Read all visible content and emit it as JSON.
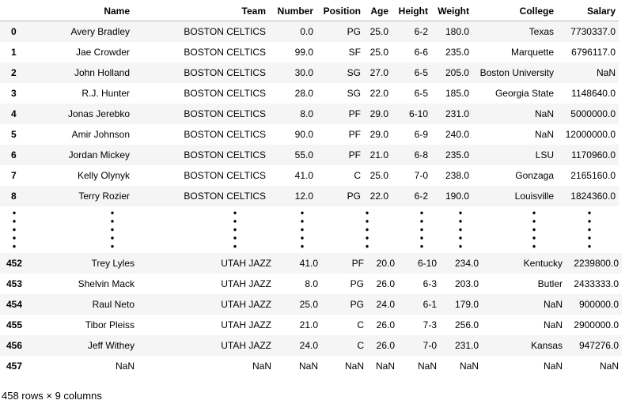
{
  "columns": [
    "Name",
    "Team",
    "Number",
    "Position",
    "Age",
    "Height",
    "Weight",
    "College",
    "Salary"
  ],
  "top_rows": [
    {
      "idx": "0",
      "cells": [
        "Avery Bradley",
        "BOSTON CELTICS",
        "0.0",
        "PG",
        "25.0",
        "6-2",
        "180.0",
        "Texas",
        "7730337.0"
      ]
    },
    {
      "idx": "1",
      "cells": [
        "Jae Crowder",
        "BOSTON CELTICS",
        "99.0",
        "SF",
        "25.0",
        "6-6",
        "235.0",
        "Marquette",
        "6796117.0"
      ]
    },
    {
      "idx": "2",
      "cells": [
        "John Holland",
        "BOSTON CELTICS",
        "30.0",
        "SG",
        "27.0",
        "6-5",
        "205.0",
        "Boston University",
        "NaN"
      ]
    },
    {
      "idx": "3",
      "cells": [
        "R.J. Hunter",
        "BOSTON CELTICS",
        "28.0",
        "SG",
        "22.0",
        "6-5",
        "185.0",
        "Georgia State",
        "1148640.0"
      ]
    },
    {
      "idx": "4",
      "cells": [
        "Jonas Jerebko",
        "BOSTON CELTICS",
        "8.0",
        "PF",
        "29.0",
        "6-10",
        "231.0",
        "NaN",
        "5000000.0"
      ]
    },
    {
      "idx": "5",
      "cells": [
        "Amir Johnson",
        "BOSTON CELTICS",
        "90.0",
        "PF",
        "29.0",
        "6-9",
        "240.0",
        "NaN",
        "12000000.0"
      ]
    },
    {
      "idx": "6",
      "cells": [
        "Jordan Mickey",
        "BOSTON CELTICS",
        "55.0",
        "PF",
        "21.0",
        "6-8",
        "235.0",
        "LSU",
        "1170960.0"
      ]
    },
    {
      "idx": "7",
      "cells": [
        "Kelly Olynyk",
        "BOSTON CELTICS",
        "41.0",
        "C",
        "25.0",
        "7-0",
        "238.0",
        "Gonzaga",
        "2165160.0"
      ]
    },
    {
      "idx": "8",
      "cells": [
        "Terry Rozier",
        "BOSTON CELTICS",
        "12.0",
        "PG",
        "22.0",
        "6-2",
        "190.0",
        "Louisville",
        "1824360.0"
      ]
    }
  ],
  "bottom_rows": [
    {
      "idx": "452",
      "cells": [
        "Trey Lyles",
        "UTAH JAZZ",
        "41.0",
        "PF",
        "20.0",
        "6-10",
        "234.0",
        "Kentucky",
        "2239800.0"
      ]
    },
    {
      "idx": "453",
      "cells": [
        "Shelvin Mack",
        "UTAH JAZZ",
        "8.0",
        "PG",
        "26.0",
        "6-3",
        "203.0",
        "Butler",
        "2433333.0"
      ]
    },
    {
      "idx": "454",
      "cells": [
        "Raul Neto",
        "UTAH JAZZ",
        "25.0",
        "PG",
        "24.0",
        "6-1",
        "179.0",
        "NaN",
        "900000.0"
      ]
    },
    {
      "idx": "455",
      "cells": [
        "Tibor Pleiss",
        "UTAH JAZZ",
        "21.0",
        "C",
        "26.0",
        "7-3",
        "256.0",
        "NaN",
        "2900000.0"
      ]
    },
    {
      "idx": "456",
      "cells": [
        "Jeff Withey",
        "UTAH JAZZ",
        "24.0",
        "C",
        "26.0",
        "7-0",
        "231.0",
        "Kansas",
        "947276.0"
      ]
    },
    {
      "idx": "457",
      "cells": [
        "NaN",
        "NaN",
        "NaN",
        "NaN",
        "NaN",
        "NaN",
        "NaN",
        "NaN",
        "NaN"
      ]
    }
  ],
  "footer": "458 rows × 9 columns"
}
